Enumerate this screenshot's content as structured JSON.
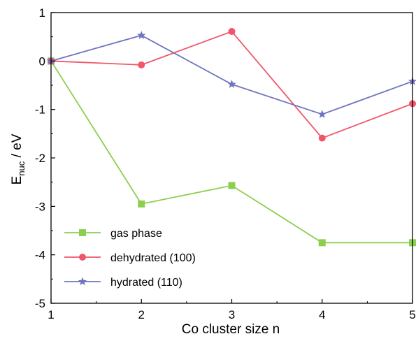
{
  "chart_data": {
    "type": "line",
    "x": [
      1,
      2,
      3,
      4,
      5
    ],
    "xlabel": "Co cluster size n",
    "ylabel_main": "E",
    "ylabel_sub": "nuc",
    "ylabel_unit": " / eV",
    "xlim": [
      1,
      5
    ],
    "ylim": [
      -5,
      1
    ],
    "xticks": [
      1,
      2,
      3,
      4,
      5
    ],
    "yticks": [
      1,
      0,
      -1,
      -2,
      -3,
      -4,
      -5
    ],
    "grid": false,
    "legend_position": "bottom-left",
    "series": [
      {
        "name": "gas phase",
        "values": [
          0,
          -2.95,
          -2.57,
          -3.75,
          -3.75
        ],
        "color": "#8ccf4e",
        "marker": "square"
      },
      {
        "name": "dehydrated (100)",
        "values": [
          0,
          -0.08,
          0.61,
          -1.59,
          -0.88
        ],
        "color": "#f0566a",
        "marker": "circle"
      },
      {
        "name": "hydrated (110)",
        "values": [
          0,
          0.53,
          -0.48,
          -1.1,
          -0.42
        ],
        "color": "#6f74c0",
        "marker": "star"
      }
    ]
  }
}
